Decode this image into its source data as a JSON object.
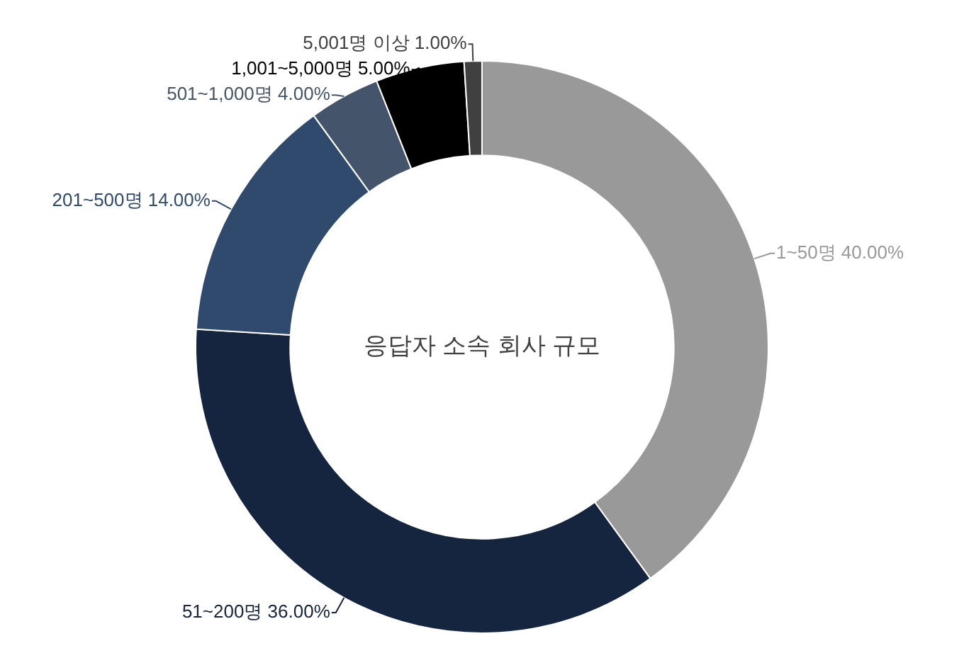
{
  "chart_data": {
    "type": "donut",
    "title": "응답자 소속 회사 규모",
    "categories": [
      "1~50명",
      "51~200명",
      "201~500명",
      "501~1,000명",
      "1,001~5,000명",
      "5,001명 이상"
    ],
    "values": [
      40,
      36,
      14,
      4,
      5,
      1
    ],
    "colors": [
      "#999999",
      "#15243f",
      "#2f4a6d",
      "#44546a",
      "#000000",
      "#404040"
    ],
    "value_labels": [
      "40.00%",
      "36.00%",
      "14.00%",
      "4.00%",
      "5.00%",
      "1.00%"
    ]
  }
}
